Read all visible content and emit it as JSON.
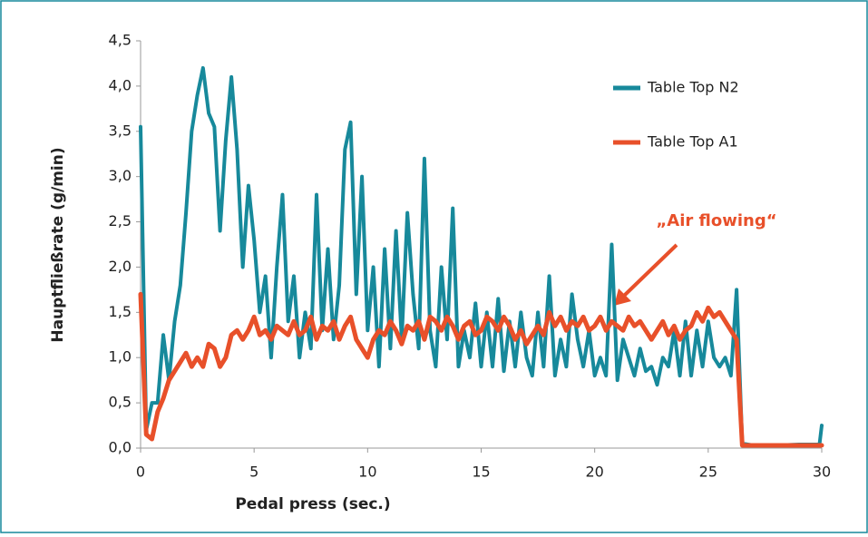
{
  "chart_data": {
    "type": "line",
    "xlabel": "Pedal press (sec.)",
    "ylabel": "Hauptfließrate (g/min)",
    "annotation": "„Air flowing“",
    "annotation_color": "#e8502a",
    "legend_position": "top-right",
    "grid": false,
    "xlim": [
      0,
      30
    ],
    "ylim": [
      0,
      4.5
    ],
    "xticks": [
      0,
      5,
      10,
      15,
      20,
      25,
      30
    ],
    "yticks": [
      {
        "value": 0,
        "label": "0,0"
      },
      {
        "value": 0.5,
        "label": "0,5"
      },
      {
        "value": 1,
        "label": "1,0"
      },
      {
        "value": 1.5,
        "label": "1,5"
      },
      {
        "value": 2,
        "label": "2,0"
      },
      {
        "value": 2.5,
        "label": "2,5"
      },
      {
        "value": 3,
        "label": "3,0"
      },
      {
        "value": 3.5,
        "label": "3,5"
      },
      {
        "value": 4,
        "label": "4,0"
      },
      {
        "value": 4.5,
        "label": "4,5"
      }
    ],
    "x": [
      0,
      0.25,
      0.5,
      0.75,
      1,
      1.25,
      1.5,
      1.75,
      2,
      2.25,
      2.5,
      2.75,
      3,
      3.25,
      3.5,
      3.75,
      4,
      4.25,
      4.5,
      4.75,
      5,
      5.25,
      5.5,
      5.75,
      6,
      6.25,
      6.5,
      6.75,
      7,
      7.25,
      7.5,
      7.75,
      8,
      8.25,
      8.5,
      8.75,
      9,
      9.25,
      9.5,
      9.75,
      10,
      10.25,
      10.5,
      10.75,
      11,
      11.25,
      11.5,
      11.75,
      12,
      12.25,
      12.5,
      12.75,
      13,
      13.25,
      13.5,
      13.75,
      14,
      14.25,
      14.5,
      14.75,
      15,
      15.25,
      15.5,
      15.75,
      16,
      16.25,
      16.5,
      16.75,
      17,
      17.25,
      17.5,
      17.75,
      18,
      18.25,
      18.5,
      18.75,
      19,
      19.25,
      19.5,
      19.75,
      20,
      20.25,
      20.5,
      20.75,
      21,
      21.25,
      21.5,
      21.75,
      22,
      22.25,
      22.5,
      22.75,
      23,
      23.25,
      23.5,
      23.75,
      24,
      24.25,
      24.5,
      24.75,
      25,
      25.25,
      25.5,
      25.75,
      26,
      26.25,
      26.5,
      27,
      28,
      29,
      29.9,
      30
    ],
    "series": [
      {
        "name": "Table Top N2",
        "color": "#17899b",
        "values": [
          3.55,
          0.2,
          0.5,
          0.5,
          1.25,
          0.75,
          1.4,
          1.8,
          2.6,
          3.5,
          3.9,
          4.2,
          3.7,
          3.55,
          2.4,
          3.4,
          4.1,
          3.3,
          2.0,
          2.9,
          2.3,
          1.5,
          1.9,
          1.0,
          2.0,
          2.8,
          1.4,
          1.9,
          1.0,
          1.5,
          1.1,
          2.8,
          1.3,
          2.2,
          1.2,
          1.8,
          3.3,
          3.6,
          1.7,
          3.0,
          1.3,
          2.0,
          0.9,
          2.2,
          1.1,
          2.4,
          1.2,
          2.6,
          1.7,
          1.1,
          3.2,
          1.3,
          0.9,
          2.0,
          1.2,
          2.65,
          0.9,
          1.3,
          1.0,
          1.6,
          0.9,
          1.5,
          0.9,
          1.65,
          0.85,
          1.4,
          0.9,
          1.5,
          1.0,
          0.8,
          1.5,
          0.9,
          1.9,
          0.8,
          1.2,
          0.9,
          1.7,
          1.2,
          0.9,
          1.3,
          0.8,
          1.0,
          0.8,
          2.25,
          0.75,
          1.2,
          1.0,
          0.8,
          1.1,
          0.85,
          0.9,
          0.7,
          1.0,
          0.9,
          1.3,
          0.8,
          1.4,
          0.8,
          1.3,
          0.9,
          1.4,
          1.0,
          0.9,
          1.0,
          0.8,
          1.75,
          0.05,
          0.03,
          0.03,
          0.04,
          0.04,
          0.25
        ]
      },
      {
        "name": "Table Top A1",
        "color": "#e8502a",
        "values": [
          1.7,
          0.15,
          0.1,
          0.4,
          0.55,
          0.75,
          0.85,
          0.95,
          1.05,
          0.9,
          1.0,
          0.9,
          1.15,
          1.1,
          0.9,
          1.0,
          1.25,
          1.3,
          1.2,
          1.3,
          1.45,
          1.25,
          1.3,
          1.2,
          1.35,
          1.3,
          1.25,
          1.4,
          1.25,
          1.3,
          1.45,
          1.2,
          1.35,
          1.3,
          1.4,
          1.2,
          1.35,
          1.45,
          1.2,
          1.1,
          1.0,
          1.2,
          1.3,
          1.25,
          1.4,
          1.3,
          1.15,
          1.35,
          1.3,
          1.4,
          1.2,
          1.45,
          1.4,
          1.3,
          1.45,
          1.35,
          1.2,
          1.35,
          1.4,
          1.25,
          1.3,
          1.45,
          1.4,
          1.3,
          1.45,
          1.35,
          1.2,
          1.3,
          1.15,
          1.25,
          1.35,
          1.25,
          1.5,
          1.35,
          1.45,
          1.3,
          1.4,
          1.35,
          1.45,
          1.3,
          1.35,
          1.45,
          1.3,
          1.4,
          1.35,
          1.3,
          1.45,
          1.35,
          1.4,
          1.3,
          1.2,
          1.3,
          1.4,
          1.25,
          1.35,
          1.2,
          1.3,
          1.35,
          1.5,
          1.4,
          1.55,
          1.45,
          1.5,
          1.4,
          1.3,
          1.2,
          0.03,
          0.03,
          0.03,
          0.03,
          0.03,
          0.03
        ]
      }
    ]
  }
}
